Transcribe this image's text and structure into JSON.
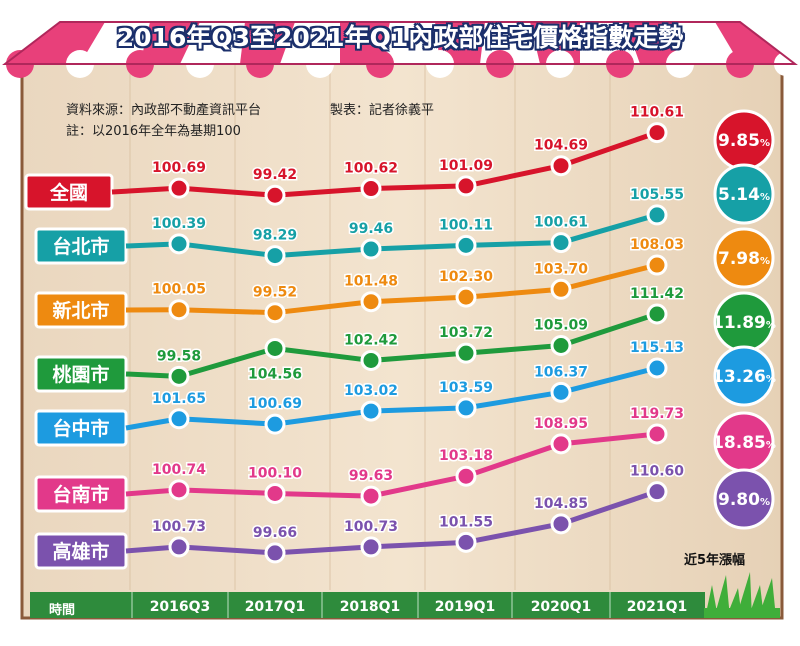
{
  "notes": {
    "source": "資料來源：內政部不動產資訊平台",
    "credit": "製表：記者徐義平",
    "base": "註：以2016年全年為基期100"
  },
  "chart_data": {
    "type": "line",
    "title": "2016年Q3至2021年Q1內政部住宅價格指數走勢",
    "xlabel": "時間",
    "growth_label": "近5年漲幅",
    "categories": [
      "2016Q3",
      "2017Q1",
      "2018Q1",
      "2019Q1",
      "2020Q1",
      "2021Q1"
    ],
    "series": [
      {
        "name": "全國",
        "values": [
          100.69,
          99.42,
          100.62,
          101.09,
          104.69,
          110.61
        ],
        "growth": "9.85",
        "color": "#d7142b"
      },
      {
        "name": "台北市",
        "values": [
          100.39,
          98.29,
          99.46,
          100.11,
          100.61,
          105.55
        ],
        "growth": "5.14",
        "color": "#16a0a6"
      },
      {
        "name": "新北市",
        "values": [
          100.05,
          99.52,
          101.48,
          102.3,
          103.7,
          108.03
        ],
        "growth": "7.98",
        "color": "#ee8a10"
      },
      {
        "name": "桃園市",
        "values": [
          99.58,
          104.56,
          102.42,
          103.72,
          105.09,
          111.42
        ],
        "growth": "11.89",
        "color": "#1f9a3c"
      },
      {
        "name": "台中市",
        "values": [
          101.65,
          100.69,
          103.02,
          103.59,
          106.37,
          115.13
        ],
        "growth": "13.26",
        "color": "#1d9be0"
      },
      {
        "name": "台南市",
        "values": [
          100.74,
          100.1,
          99.63,
          103.18,
          108.95,
          119.73
        ],
        "growth": "18.85",
        "color": "#e2398a"
      },
      {
        "name": "高雄市",
        "values": [
          100.73,
          99.66,
          100.73,
          101.55,
          104.85,
          110.6
        ],
        "growth": "9.80",
        "color": "#7b52ad"
      }
    ]
  }
}
